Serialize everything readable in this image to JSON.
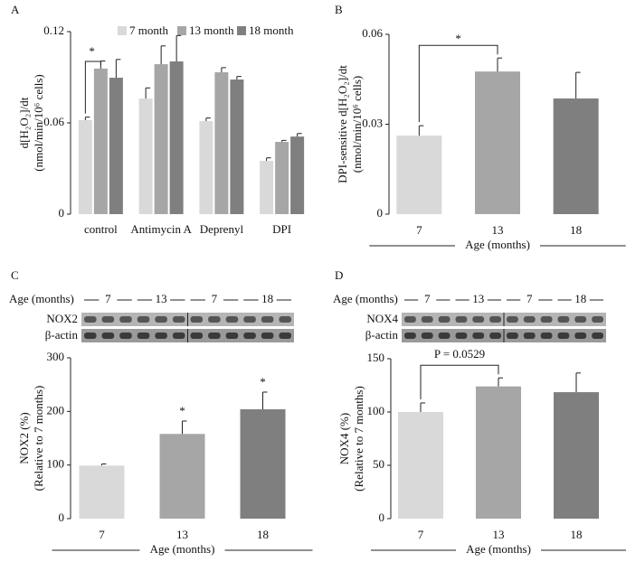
{
  "chart_data": [
    {
      "type": "grouped_bar",
      "panel": "A",
      "ylabel": [
        "d[H₂O₂]/dt",
        "(nmol/min/10⁶ cells)"
      ],
      "categories": [
        "control",
        "Antimycin A",
        "Deprenyl",
        "DPI"
      ],
      "series": [
        {
          "name": "7 month",
          "color": "#d9d9d9",
          "values": [
            0.0618,
            0.076,
            0.0612,
            0.035
          ],
          "errors": [
            0.002,
            0.007,
            0.002,
            0.002
          ]
        },
        {
          "name": "13 month",
          "color": "#a6a6a6",
          "values": [
            0.0957,
            0.0986,
            0.0933,
            0.0475
          ],
          "errors": [
            0.005,
            0.012,
            0.003,
            0.001
          ]
        },
        {
          "name": "18 month",
          "color": "#7f7f7f",
          "values": [
            0.0897,
            0.1004,
            0.0885,
            0.051
          ],
          "errors": [
            0.012,
            0.017,
            0.002,
            0.002
          ]
        }
      ],
      "ylim": [
        0,
        0.12
      ],
      "yticks": [
        0,
        0.06,
        0.12
      ],
      "annotations": [
        "*"
      ]
    },
    {
      "type": "bar",
      "panel": "B",
      "ylabel": [
        "DPI-sensitive d[H₂O₂]/dt",
        "(nmol/min/10⁶ cells)"
      ],
      "categories": [
        "7",
        "13",
        "18"
      ],
      "values": [
        0.0262,
        0.0476,
        0.0386
      ],
      "errors": [
        0.0033,
        0.0045,
        0.0087
      ],
      "colors": [
        "#d9d9d9",
        "#a6a6a6",
        "#7f7f7f"
      ],
      "xlabel": "Age (months)",
      "ylim": [
        0,
        0.06
      ],
      "yticks": [
        0,
        0.03,
        0.06
      ],
      "annotations": [
        "*"
      ]
    },
    {
      "type": "bar",
      "panel": "C",
      "ylabel": [
        "NOX2 (%)",
        "(Relative to 7 months)"
      ],
      "categories": [
        "7",
        "13",
        "18"
      ],
      "values": [
        99,
        158,
        204
      ],
      "errors": [
        3,
        24,
        32
      ],
      "colors": [
        "#d9d9d9",
        "#a6a6a6",
        "#7f7f7f"
      ],
      "xlabel": "Age (months)",
      "ylim": [
        0,
        300
      ],
      "yticks": [
        0,
        100,
        200,
        300
      ],
      "annotations": [
        "*",
        "*"
      ],
      "blot": {
        "age_label": "Age (months)",
        "lanes": [
          "7",
          "13",
          "7",
          "18"
        ],
        "rows": [
          "NOX2",
          "β-actin"
        ]
      }
    },
    {
      "type": "bar",
      "panel": "D",
      "ylabel": [
        "NOX4 (%)",
        "(Relative to 7 months)"
      ],
      "categories": [
        "7",
        "13",
        "18"
      ],
      "values": [
        100,
        124,
        118.6
      ],
      "errors": [
        8.5,
        8,
        18
      ],
      "colors": [
        "#d9d9d9",
        "#a6a6a6",
        "#7f7f7f"
      ],
      "xlabel": "Age (months)",
      "ylim": [
        0,
        150
      ],
      "yticks": [
        0,
        50,
        100,
        150
      ],
      "annotations": [
        "P = 0.0529"
      ],
      "blot": {
        "age_label": "Age (months)",
        "lanes": [
          "7",
          "13",
          "7",
          "18"
        ],
        "rows": [
          "NOX4",
          "β-actin"
        ]
      }
    }
  ]
}
